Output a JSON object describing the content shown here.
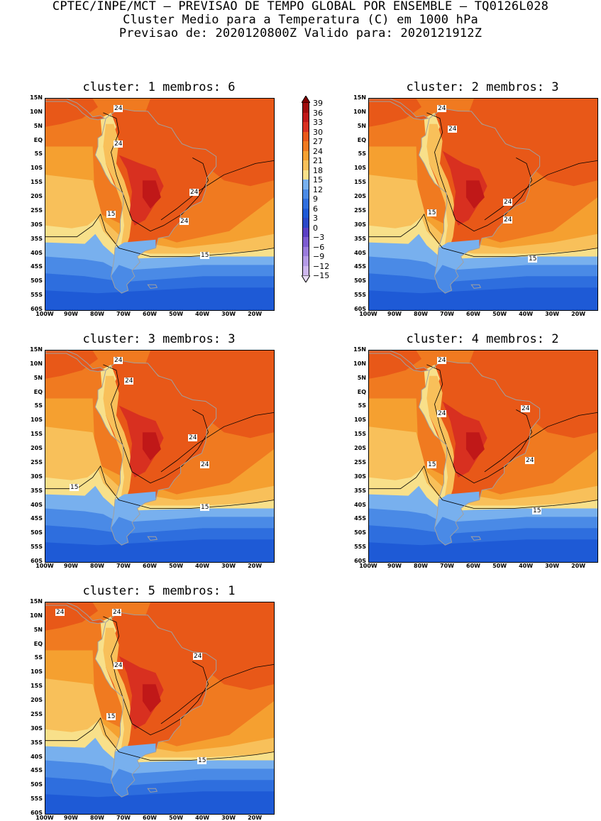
{
  "header": {
    "line1": "CPTEC/INPE/MCT — PREVISAO DE TEMPO GLOBAL POR ENSEMBLE — TQ0126L028",
    "line2": "Cluster Medio para a Temperatura (C) em 1000 hPa",
    "line3": "Previsao de: 2020120800Z   Valido para: 2020121912Z"
  },
  "y_ticks": [
    "15N",
    "10N",
    "5N",
    "EQ",
    "5S",
    "10S",
    "15S",
    "20S",
    "25S",
    "30S",
    "35S",
    "40S",
    "45S",
    "50S",
    "55S",
    "60S"
  ],
  "x_ticks": [
    "100W",
    "90W",
    "80W",
    "70W",
    "60W",
    "50W",
    "40W",
    "30W",
    "20W"
  ],
  "colors": {
    "lt_m15": "#e8dcf5",
    "m15": "#cdb6ee",
    "m12": "#b49ae6",
    "m9": "#9a7bdc",
    "m6": "#7c5bd0",
    "m3": "#5a3fc4",
    "c0": "#2a48c8",
    "c3": "#1e5ad6",
    "c6": "#2e6ede",
    "c9": "#4a8ae6",
    "c12": "#78b0ee",
    "c15": "#f8e08a",
    "c18": "#f8c05a",
    "c21": "#f5a030",
    "c24": "#f07a20",
    "c27": "#e85818",
    "c30": "#d83020",
    "c33": "#c01818",
    "c36": "#a00c0c",
    "gt39": "#800000",
    "land_outline": "#a0a0a0"
  },
  "colorbar": {
    "labels": [
      "39",
      "36",
      "33",
      "30",
      "27",
      "24",
      "21",
      "18",
      "15",
      "12",
      "9",
      "6",
      "3",
      "0",
      "−3",
      "−6",
      "−9",
      "−12",
      "−15"
    ],
    "colors": [
      "#800000",
      "#a00c0c",
      "#c01818",
      "#d83020",
      "#e85818",
      "#f07a20",
      "#f5a030",
      "#f8c05a",
      "#f8e08a",
      "#78b0ee",
      "#4a8ae6",
      "#2e6ede",
      "#1e5ad6",
      "#2a48c8",
      "#5a3fc4",
      "#7c5bd0",
      "#9a7bdc",
      "#b49ae6",
      "#cdb6ee",
      "#e8dcf5"
    ]
  },
  "panels": [
    {
      "id": 1,
      "title": "cluster: 1   membros: 6",
      "contour_labels": [
        {
          "text": "24"
        },
        {
          "text": "24"
        },
        {
          "text": "24"
        },
        {
          "text": "24"
        },
        {
          "text": "15"
        },
        {
          "text": "15"
        }
      ]
    },
    {
      "id": 2,
      "title": "cluster: 2   membros: 3",
      "contour_labels": [
        {
          "text": "24"
        },
        {
          "text": "24"
        },
        {
          "text": "24"
        },
        {
          "text": "24"
        },
        {
          "text": "15"
        },
        {
          "text": "15"
        }
      ]
    },
    {
      "id": 3,
      "title": "cluster: 3   membros: 3",
      "contour_labels": [
        {
          "text": "24"
        },
        {
          "text": "24"
        },
        {
          "text": "24"
        },
        {
          "text": "24"
        },
        {
          "text": "15"
        },
        {
          "text": "15"
        }
      ]
    },
    {
      "id": 4,
      "title": "cluster: 4   membros: 2",
      "contour_labels": [
        {
          "text": "24"
        },
        {
          "text": "24"
        },
        {
          "text": "24"
        },
        {
          "text": "24"
        },
        {
          "text": "15"
        },
        {
          "text": "15"
        }
      ]
    },
    {
      "id": 5,
      "title": "cluster: 5   membros: 1",
      "contour_labels": [
        {
          "text": "24"
        },
        {
          "text": "24"
        },
        {
          "text": "24"
        },
        {
          "text": "24"
        },
        {
          "text": "15"
        },
        {
          "text": "15"
        }
      ]
    }
  ]
}
